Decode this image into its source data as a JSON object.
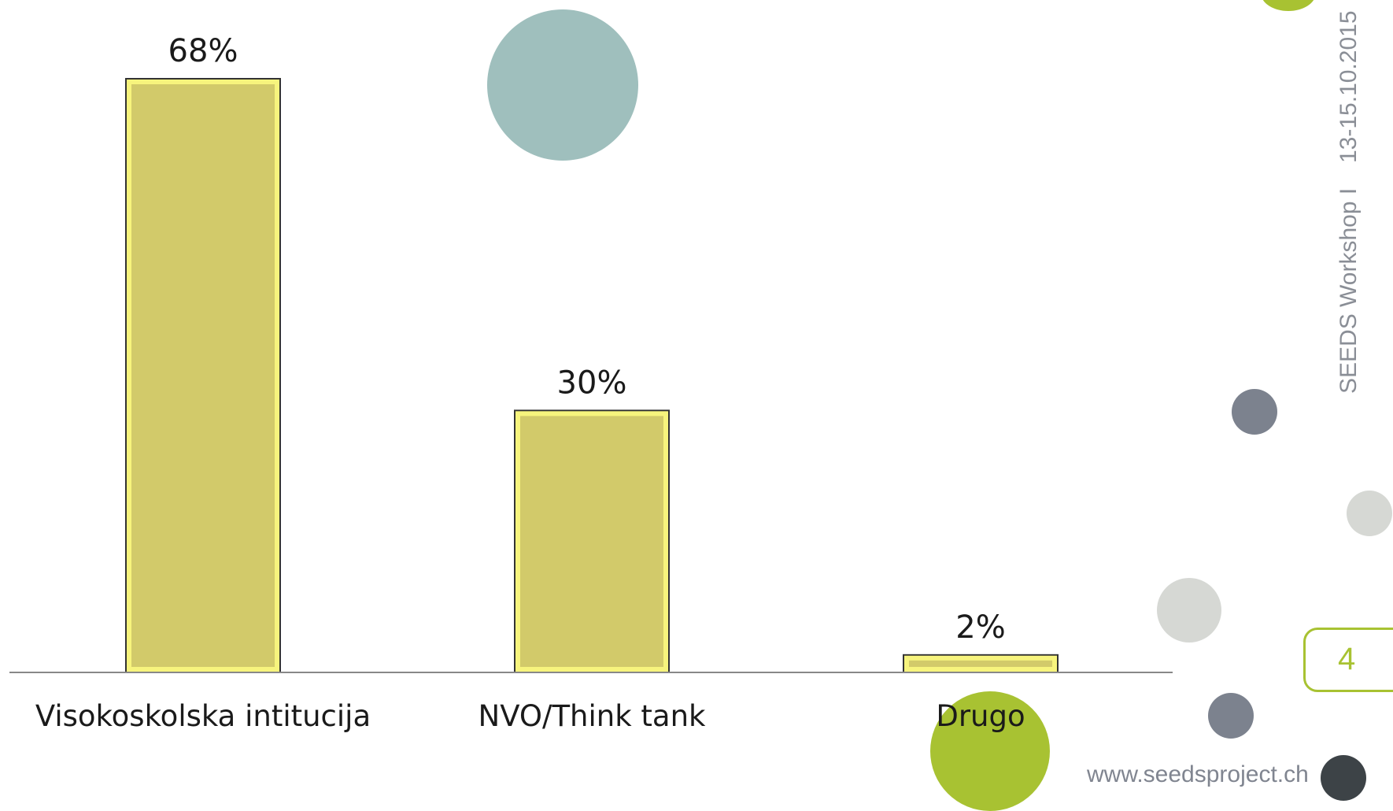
{
  "chart_data": {
    "type": "bar",
    "categories": [
      "Visokoskolska intitucija",
      "NVO/Think tank",
      "Drugo"
    ],
    "values": [
      68,
      30,
      2
    ],
    "data_labels": [
      "68%",
      "30%",
      "2%"
    ],
    "ylim": [
      0,
      68
    ],
    "grid": false,
    "legend": "none",
    "bar_fill": "#d2ca6a",
    "bar_outline": "#f7f47d",
    "bar_edge": "#333333"
  },
  "sidebar": {
    "date": "13-15.10.2015",
    "event": "SEEDS Workshop I",
    "page_number": "4",
    "website": "www.seedsproject.ch"
  },
  "colors": {
    "accent_green": "#a8c232",
    "teal": "#9fbfbd",
    "slate": "#7c828e",
    "light_gray": "#d6d8d4",
    "dark": "#3d4347"
  }
}
